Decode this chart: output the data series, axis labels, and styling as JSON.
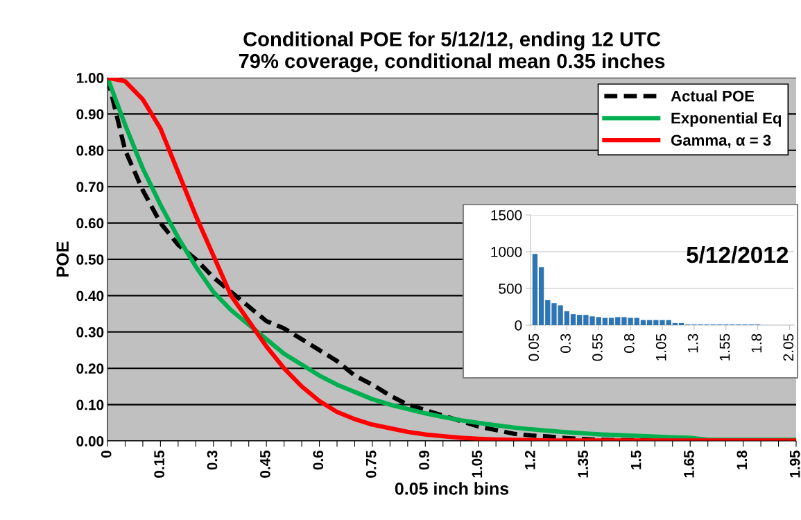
{
  "chart_data": [
    {
      "type": "line",
      "title": "Conditional POE for 5/12/12, ending 12 UTC\n79% coverage, conditional mean 0.35 inches",
      "xlabel": "0.05 inch bins",
      "ylabel": "POE",
      "x": [
        0,
        0.05,
        0.1,
        0.15,
        0.2,
        0.25,
        0.3,
        0.35,
        0.4,
        0.45,
        0.5,
        0.55,
        0.6,
        0.65,
        0.7,
        0.75,
        0.8,
        0.85,
        0.9,
        0.95,
        1.0,
        1.05,
        1.1,
        1.15,
        1.2,
        1.25,
        1.3,
        1.35,
        1.4,
        1.45,
        1.5,
        1.55,
        1.6,
        1.65,
        1.7,
        1.75,
        1.8,
        1.85,
        1.9,
        1.95
      ],
      "series": [
        {
          "name": "Actual POE",
          "color": "#000000",
          "line_style": "dashed",
          "values": [
            1.0,
            0.8,
            0.69,
            0.6,
            0.54,
            0.5,
            0.45,
            0.41,
            0.37,
            0.33,
            0.31,
            0.28,
            0.25,
            0.22,
            0.18,
            0.155,
            0.125,
            0.1,
            0.085,
            0.07,
            0.055,
            0.04,
            0.03,
            0.02,
            0.015,
            0.012,
            0.008,
            0.005,
            0.003,
            0.002,
            0.002,
            0.001,
            0.001,
            0.001,
            0.001,
            0.001,
            0.001,
            0.001,
            0.001,
            0.001
          ]
        },
        {
          "name": "Exponential Eq",
          "color": "#00b050",
          "line_style": "solid",
          "values": [
            1.0,
            0.87,
            0.75,
            0.65,
            0.56,
            0.48,
            0.41,
            0.36,
            0.32,
            0.28,
            0.24,
            0.21,
            0.18,
            0.155,
            0.135,
            0.115,
            0.1,
            0.088,
            0.076,
            0.066,
            0.057,
            0.05,
            0.043,
            0.037,
            0.032,
            0.028,
            0.024,
            0.021,
            0.018,
            0.016,
            0.014,
            0.012,
            0.01,
            0.009,
            0.003,
            0.003,
            0.003,
            0.003,
            0.003,
            0.003
          ]
        },
        {
          "name": "Gamma, α = 3",
          "color": "#ff0000",
          "line_style": "solid",
          "values": [
            1.0,
            0.99,
            0.94,
            0.86,
            0.74,
            0.62,
            0.51,
            0.4,
            0.33,
            0.26,
            0.2,
            0.15,
            0.11,
            0.08,
            0.06,
            0.045,
            0.035,
            0.025,
            0.018,
            0.013,
            0.009,
            0.006,
            0.004,
            0.003,
            0.002,
            0.001,
            0.001,
            0.001,
            0.001,
            0.001,
            0.001,
            0.001,
            0.001,
            0.001,
            0.001,
            0.001,
            0.001,
            0.001,
            0.001,
            0.001
          ]
        }
      ],
      "xlim": [
        0,
        1.95
      ],
      "xticks": [
        0,
        {
          "value": 0.05,
          "label": null
        },
        {
          "value": 0.1,
          "label": null
        },
        0.15,
        {
          "value": 0.2,
          "label": null
        },
        {
          "value": 0.25,
          "label": null
        },
        0.3,
        {
          "value": 0.35,
          "label": null
        },
        {
          "value": 0.4,
          "label": null
        },
        0.45,
        {
          "value": 0.5,
          "label": null
        },
        {
          "value": 0.55,
          "label": null
        },
        0.6,
        {
          "value": 0.65,
          "label": null
        },
        {
          "value": 0.7,
          "label": null
        },
        0.75,
        {
          "value": 0.8,
          "label": null
        },
        {
          "value": 0.85,
          "label": null
        },
        0.9,
        {
          "value": 0.95,
          "label": null
        },
        {
          "value": 1.0,
          "label": null
        },
        1.05,
        {
          "value": 1.1,
          "label": null
        },
        {
          "value": 1.15,
          "label": null
        },
        1.2,
        {
          "value": 1.25,
          "label": null
        },
        {
          "value": 1.3,
          "label": null
        },
        1.35,
        {
          "value": 1.4,
          "label": null
        },
        {
          "value": 1.45,
          "label": null
        },
        1.5,
        {
          "value": 1.55,
          "label": null
        },
        {
          "value": 1.6,
          "label": null
        },
        1.65,
        {
          "value": 1.7,
          "label": null
        },
        {
          "value": 1.75,
          "label": null
        },
        1.8,
        {
          "value": 1.85,
          "label": null
        },
        {
          "value": 1.9,
          "label": null
        },
        1.95
      ],
      "ylim": [
        0,
        1.0
      ],
      "yticks": [
        {
          "value": 0,
          "label": "0.00"
        },
        {
          "value": 0.1,
          "label": "0.10"
        },
        {
          "value": 0.2,
          "label": "0.20"
        },
        {
          "value": 0.3,
          "label": "0.30"
        },
        {
          "value": 0.4,
          "label": "0.40"
        },
        {
          "value": 0.5,
          "label": "0.50"
        },
        {
          "value": 0.6,
          "label": "0.60"
        },
        {
          "value": 0.7,
          "label": "0.70"
        },
        {
          "value": 0.8,
          "label": "0.80"
        },
        {
          "value": 0.9,
          "label": "0.90"
        },
        {
          "value": 1.0,
          "label": "1.00"
        }
      ],
      "grid": "y",
      "legend": "top right"
    },
    {
      "type": "bar",
      "annotations": [
        "5/12/2012"
      ],
      "categories": [
        "0.05",
        null,
        null,
        null,
        null,
        "0.3",
        null,
        null,
        null,
        null,
        "0.55",
        null,
        null,
        null,
        null,
        "0.8",
        null,
        null,
        null,
        null,
        "1.05",
        null,
        null,
        null,
        null,
        "1.3",
        null,
        null,
        null,
        null,
        "1.55",
        null,
        null,
        null,
        null,
        "1.8",
        null,
        null,
        null,
        null,
        "2.05"
      ],
      "color": "#2e75b6",
      "values": [
        970,
        790,
        340,
        300,
        270,
        190,
        150,
        140,
        140,
        120,
        110,
        100,
        100,
        110,
        110,
        100,
        100,
        70,
        70,
        70,
        70,
        70,
        30,
        30,
        10,
        10,
        10,
        10,
        10,
        10,
        10,
        10,
        10,
        10,
        10,
        10,
        0,
        0,
        0,
        0,
        0
      ],
      "ylim": [
        0,
        1500
      ],
      "yticks": [
        0,
        500,
        1000,
        1500
      ],
      "grid": "y"
    }
  ]
}
